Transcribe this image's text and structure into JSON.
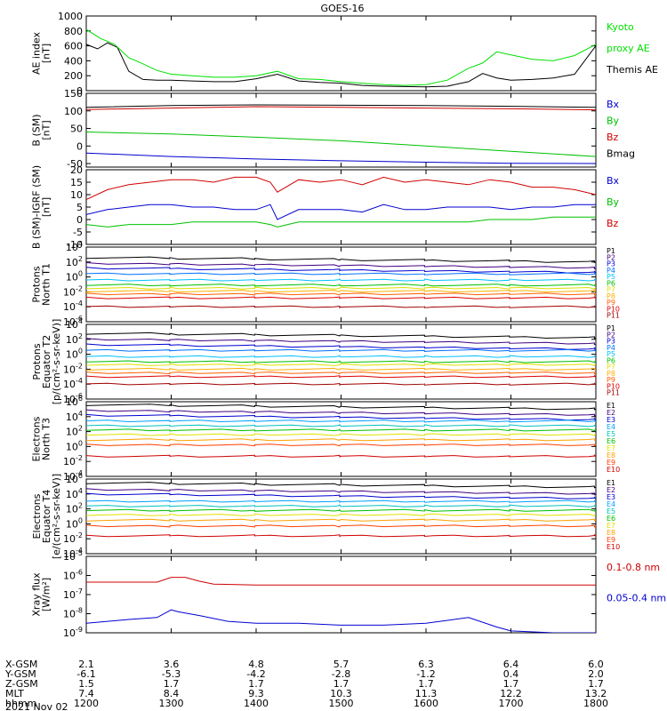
{
  "chart_data": {
    "type": "line",
    "title": "GOES-16",
    "x_ticks": [
      "1200",
      "1300",
      "1400",
      "1500",
      "1600",
      "1700",
      "1800"
    ],
    "x_range": [
      "1200",
      "1800"
    ],
    "orbit_rows": [
      {
        "label": "X-GSM",
        "values": [
          "2.1",
          "3.6",
          "4.8",
          "5.7",
          "6.3",
          "6.4",
          "6.0"
        ]
      },
      {
        "label": "Y-GSM",
        "values": [
          "-6.1",
          "-5.3",
          "-4.2",
          "-2.8",
          "-1.2",
          "0.4",
          "2.0"
        ]
      },
      {
        "label": "Z-GSM",
        "values": [
          "1.5",
          "1.7",
          "1.7",
          "1.7",
          "1.7",
          "1.7",
          "1.7"
        ]
      },
      {
        "label": "MLT",
        "values": [
          "7.4",
          "8.4",
          "9.3",
          "10.3",
          "11.3",
          "12.2",
          "13.2"
        ]
      },
      {
        "label": "hhmm",
        "values": [
          "1200",
          "1300",
          "1400",
          "1500",
          "1600",
          "1700",
          "1800"
        ]
      }
    ],
    "date": "2021 Nov 02",
    "panels": [
      {
        "ylabel": [
          "AE index",
          "[nT]"
        ],
        "ylim": [
          0,
          1000
        ],
        "y_ticks": [
          "0",
          "200",
          "400",
          "600",
          "800",
          "1000"
        ],
        "legend": [
          {
            "name": "Kyoto",
            "color": "#00e000"
          },
          {
            "name": "proxy AE",
            "color": "#00e000"
          },
          {
            "name": "Themis AE",
            "color": "#000000"
          }
        ],
        "series": [
          {
            "name": "Themis AE",
            "color": "#000000",
            "x": [
              1200,
              1208,
              1215,
              1222,
              1230,
              1240,
              1250,
              1300,
              1315,
              1330,
              1345,
              1400,
              1415,
              1430,
              1445,
              1500,
              1515,
              1530,
              1545,
              1600,
              1615,
              1630,
              1640,
              1650,
              1700,
              1715,
              1730,
              1745,
              1800
            ],
            "y": [
              620,
              560,
              640,
              580,
              260,
              150,
              140,
              140,
              130,
              120,
              120,
              160,
              220,
              130,
              110,
              100,
              70,
              60,
              55,
              50,
              60,
              120,
              230,
              170,
              140,
              150,
              170,
              220,
              600
            ]
          },
          {
            "name": "Kyoto proxy AE",
            "color": "#00e000",
            "x": [
              1200,
              1210,
              1220,
              1230,
              1240,
              1250,
              1300,
              1315,
              1330,
              1345,
              1400,
              1415,
              1430,
              1445,
              1500,
              1515,
              1530,
              1545,
              1600,
              1615,
              1630,
              1640,
              1650,
              1700,
              1715,
              1730,
              1745,
              1800
            ],
            "y": [
              820,
              700,
              620,
              440,
              360,
              270,
              220,
              200,
              180,
              180,
              200,
              260,
              160,
              150,
              120,
              100,
              80,
              70,
              80,
              140,
              300,
              370,
              520,
              480,
              420,
              400,
              470,
              620
            ]
          }
        ]
      },
      {
        "ylabel": [
          "B (SM)",
          "[nT]"
        ],
        "ylim": [
          -60,
          150
        ],
        "y_ticks": [
          "-50",
          "0",
          "50",
          "100",
          "150"
        ],
        "legend": [
          {
            "name": "Bx",
            "color": "#0000d0"
          },
          {
            "name": "By",
            "color": "#00c000"
          },
          {
            "name": "Bz",
            "color": "#d00000"
          },
          {
            "name": "Bmag",
            "color": "#000000"
          }
        ],
        "series": [
          {
            "name": "Bmag",
            "color": "#000000",
            "x": [
              1200,
              1300,
              1400,
              1500,
              1600,
              1700,
              1800
            ],
            "y": [
              110,
              115,
              117,
              116,
              115,
              113,
              110
            ]
          },
          {
            "name": "Bz",
            "color": "#d00000",
            "x": [
              1200,
              1300,
              1400,
              1500,
              1600,
              1700,
              1800
            ],
            "y": [
              104,
              108,
              112,
              110,
              108,
              106,
              103
            ]
          },
          {
            "name": "By",
            "color": "#00c000",
            "x": [
              1200,
              1300,
              1400,
              1500,
              1600,
              1700,
              1800
            ],
            "y": [
              40,
              34,
              25,
              15,
              0,
              -15,
              -30
            ]
          },
          {
            "name": "Bx",
            "color": "#0000d0",
            "x": [
              1200,
              1300,
              1400,
              1500,
              1600,
              1700,
              1800
            ],
            "y": [
              -20,
              -30,
              -37,
              -42,
              -46,
              -49,
              -50
            ]
          }
        ]
      },
      {
        "ylabel": [
          "B (SM)-IGRF (SM)",
          "[nT]"
        ],
        "ylim": [
          -10,
          20
        ],
        "y_ticks": [
          "-10",
          "-5",
          "0",
          "5",
          "10",
          "15",
          "20"
        ],
        "legend": [
          {
            "name": "Bx",
            "color": "#0000d0"
          },
          {
            "name": "By",
            "color": "#00c000"
          },
          {
            "name": "Bz",
            "color": "#d00000"
          }
        ],
        "series": [
          {
            "name": "Bz",
            "color": "#d00000",
            "x": [
              1200,
              1215,
              1230,
              1245,
              1300,
              1315,
              1330,
              1345,
              1400,
              1410,
              1415,
              1430,
              1445,
              1500,
              1515,
              1530,
              1545,
              1600,
              1615,
              1630,
              1645,
              1700,
              1715,
              1730,
              1745,
              1800
            ],
            "y": [
              8,
              12,
              14,
              15,
              16,
              16,
              15,
              17,
              17,
              15,
              11,
              16,
              15,
              16,
              14,
              17,
              15,
              16,
              15,
              14,
              16,
              15,
              13,
              13,
              12,
              10
            ]
          },
          {
            "name": "Bx",
            "color": "#0000d0",
            "x": [
              1200,
              1215,
              1230,
              1245,
              1300,
              1315,
              1330,
              1345,
              1400,
              1410,
              1415,
              1430,
              1445,
              1500,
              1515,
              1530,
              1545,
              1600,
              1615,
              1630,
              1645,
              1700,
              1715,
              1730,
              1745,
              1800
            ],
            "y": [
              2,
              4,
              5,
              6,
              6,
              5,
              5,
              4,
              4,
              6,
              0,
              4,
              4,
              4,
              3,
              6,
              4,
              4,
              5,
              5,
              5,
              4,
              5,
              5,
              6,
              6
            ]
          },
          {
            "name": "By",
            "color": "#00c000",
            "x": [
              1200,
              1215,
              1230,
              1245,
              1300,
              1315,
              1330,
              1345,
              1400,
              1410,
              1415,
              1430,
              1445,
              1500,
              1515,
              1530,
              1545,
              1600,
              1615,
              1630,
              1645,
              1700,
              1715,
              1730,
              1745,
              1800
            ],
            "y": [
              -2,
              -3,
              -2,
              -2,
              -2,
              -1,
              -1,
              -1,
              -1,
              -2,
              -3,
              -1,
              -1,
              -1,
              -1,
              -1,
              -1,
              -1,
              -1,
              -1,
              0,
              0,
              0,
              1,
              1,
              1
            ]
          }
        ]
      },
      {
        "ylabel": [
          "Protons",
          "North T1"
        ],
        "log": true,
        "ylim_exp": [
          -6,
          4
        ],
        "y_ticks": [
          "10^-6",
          "10^-4",
          "10^-2",
          "10^0",
          "10^2",
          "10^4"
        ],
        "legend": [
          {
            "name": "P1",
            "color": "#000000"
          },
          {
            "name": "P2",
            "color": "#400080"
          },
          {
            "name": "P3",
            "color": "#0000d0"
          },
          {
            "name": "P4",
            "color": "#0070ff"
          },
          {
            "name": "P5",
            "color": "#00c0ff"
          },
          {
            "name": "P6",
            "color": "#00c000"
          },
          {
            "name": "P7",
            "color": "#e0e000"
          },
          {
            "name": "P8",
            "color": "#ffb000"
          },
          {
            "name": "P9",
            "color": "#ff6000"
          },
          {
            "name": "P10",
            "color": "#e00000"
          },
          {
            "name": "P11",
            "color": "#a00000"
          }
        ],
        "levels": [
          2.6,
          1.8,
          1.2,
          0.4,
          -0.4,
          -1.1,
          -1.5,
          -1.9,
          -2.3,
          -2.8,
          -4.0
        ]
      },
      {
        "ylabel": [
          "Protons",
          "Equator T2",
          "[p/(cm²-s-sr-keV)]"
        ],
        "log": true,
        "ylim_exp": [
          -6,
          4
        ],
        "y_ticks": [
          "10^-6",
          "10^-4",
          "10^-2",
          "10^0",
          "10^2",
          "10^4"
        ],
        "legend": [
          {
            "name": "P1",
            "color": "#000000"
          },
          {
            "name": "P2",
            "color": "#400080"
          },
          {
            "name": "P3",
            "color": "#0000d0"
          },
          {
            "name": "P4",
            "color": "#0070ff"
          },
          {
            "name": "P5",
            "color": "#00c0ff"
          },
          {
            "name": "P6",
            "color": "#00c000"
          },
          {
            "name": "P7",
            "color": "#e0e000"
          },
          {
            "name": "P8",
            "color": "#ffb000"
          },
          {
            "name": "P9",
            "color": "#ff6000"
          },
          {
            "name": "P10",
            "color": "#e00000"
          },
          {
            "name": "P11",
            "color": "#a00000"
          }
        ],
        "levels": [
          2.8,
          2.0,
          1.3,
          0.5,
          -0.3,
          -1.0,
          -1.4,
          -2.0,
          -2.5,
          -3.0,
          -4.0
        ]
      },
      {
        "ylabel": [
          "Electrons",
          "North T3"
        ],
        "log": true,
        "ylim_exp": [
          -4,
          6
        ],
        "y_ticks": [
          "10^-4",
          "10^-2",
          "10^0",
          "10^2",
          "10^4",
          "10^6"
        ],
        "legend": [
          {
            "name": "E1",
            "color": "#000000"
          },
          {
            "name": "E2",
            "color": "#400080"
          },
          {
            "name": "E3",
            "color": "#0000d0"
          },
          {
            "name": "E4",
            "color": "#00a0ff"
          },
          {
            "name": "E5",
            "color": "#00c0c0"
          },
          {
            "name": "E6",
            "color": "#00c000"
          },
          {
            "name": "E7",
            "color": "#e0e000"
          },
          {
            "name": "E8",
            "color": "#ffa000"
          },
          {
            "name": "E9",
            "color": "#ff4000"
          },
          {
            "name": "E10",
            "color": "#d00000"
          }
        ],
        "levels": [
          5.6,
          4.8,
          4.2,
          3.4,
          2.8,
          2.2,
          1.6,
          0.9,
          0.2,
          -1.3
        ]
      },
      {
        "ylabel": [
          "Electrons",
          "Equator T4",
          "[e/(cm²-s-sr-keV)]"
        ],
        "log": true,
        "ylim_exp": [
          -4,
          6
        ],
        "y_ticks": [
          "10^-4",
          "10^-2",
          "10^0",
          "10^2",
          "10^4",
          "10^6"
        ],
        "legend": [
          {
            "name": "E1",
            "color": "#000000"
          },
          {
            "name": "E2",
            "color": "#400080"
          },
          {
            "name": "E3",
            "color": "#0000d0"
          },
          {
            "name": "E4",
            "color": "#00a0ff"
          },
          {
            "name": "E5",
            "color": "#00c0c0"
          },
          {
            "name": "E6",
            "color": "#00c000"
          },
          {
            "name": "E7",
            "color": "#e0e000"
          },
          {
            "name": "E8",
            "color": "#ffa000"
          },
          {
            "name": "E9",
            "color": "#ff4000"
          },
          {
            "name": "E10",
            "color": "#d00000"
          }
        ],
        "levels": [
          5.5,
          4.6,
          4.0,
          3.0,
          2.4,
          1.8,
          1.2,
          0.5,
          -0.3,
          -1.6
        ]
      },
      {
        "ylabel": [
          "Xray flux",
          "[W/m²]"
        ],
        "log": true,
        "ylim_exp": [
          -9,
          -5
        ],
        "y_ticks": [
          "10^-9",
          "10^-8",
          "10^-7",
          "10^-6",
          "10^-5"
        ],
        "legend": [
          {
            "name": "0.1-0.8 nm",
            "color": "#d00000"
          },
          {
            "name": "0.05-0.4 nm",
            "color": "#0000d0"
          }
        ],
        "series": [
          {
            "name": "0.1-0.8 nm",
            "color": "#d00000",
            "x": [
              1200,
              1240,
              1250,
              1300,
              1310,
              1320,
              1330,
              1400,
              1500,
              1600,
              1700,
              1800
            ],
            "y": [
              -6.35,
              -6.35,
              -6.35,
              -6.1,
              -6.1,
              -6.3,
              -6.45,
              -6.5,
              -6.5,
              -6.5,
              -6.5,
              -6.5
            ]
          },
          {
            "name": "0.05-0.4 nm",
            "color": "#0000d0",
            "x": [
              1200,
              1230,
              1250,
              1300,
              1305,
              1320,
              1340,
              1400,
              1430,
              1500,
              1530,
              1600,
              1630,
              1650,
              1700,
              1730,
              1800
            ],
            "y": [
              -8.5,
              -8.3,
              -8.2,
              -7.8,
              -7.9,
              -8.1,
              -8.4,
              -8.5,
              -8.5,
              -8.6,
              -8.6,
              -8.5,
              -8.2,
              -8.7,
              -8.9,
              -9.0,
              -9.0
            ]
          }
        ]
      }
    ]
  }
}
